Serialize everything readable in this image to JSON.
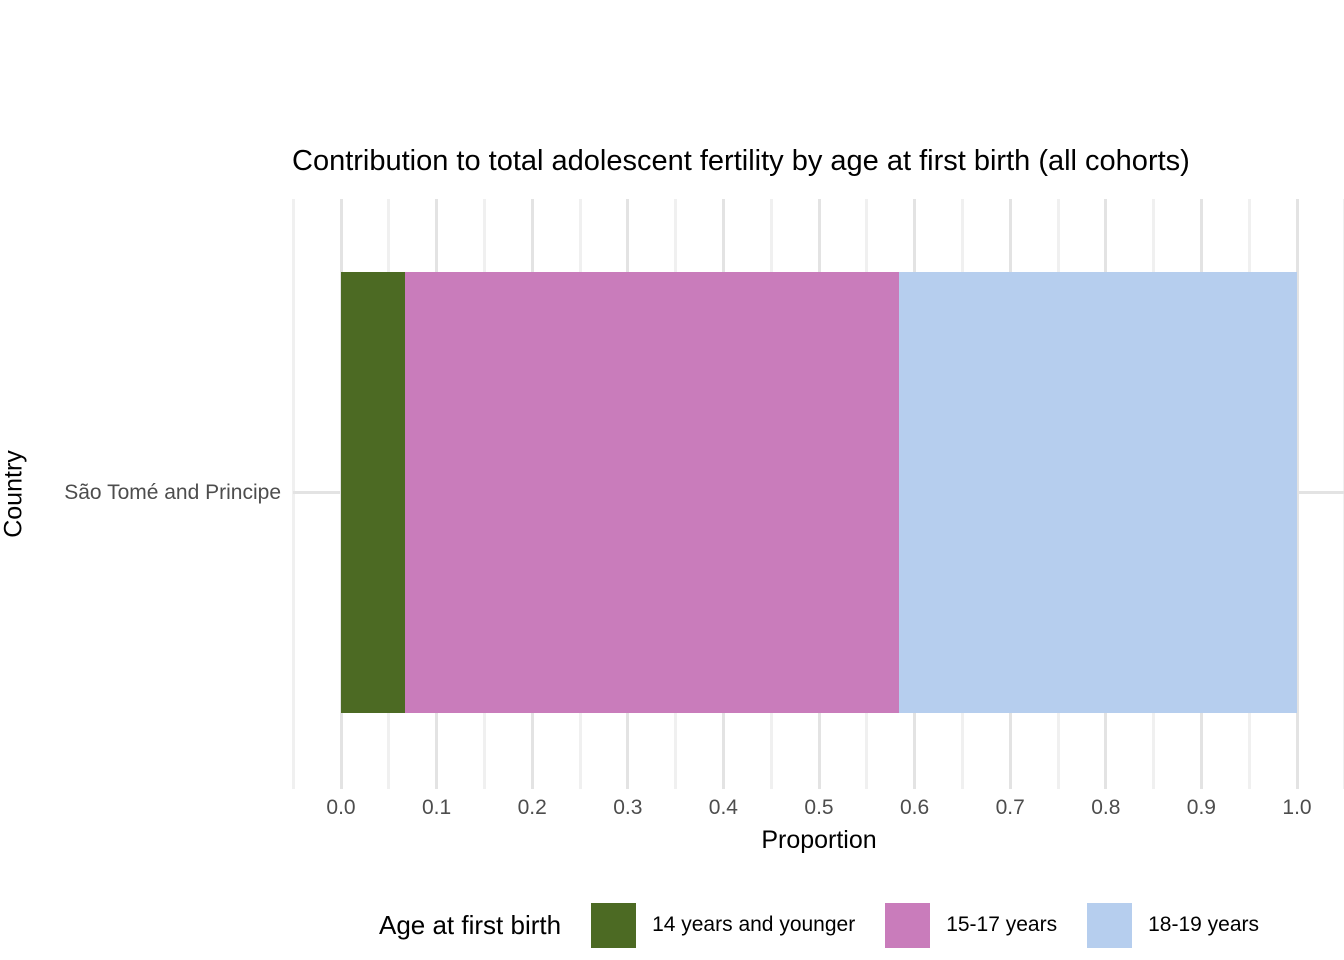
{
  "title": "Contribution to total adolescent fertility by age at first birth (all cohorts)",
  "chart_data": {
    "type": "bar",
    "orientation": "horizontal",
    "stacked": true,
    "title": "Contribution to total adolescent fertility by age at first birth (all cohorts)",
    "xlabel": "Proportion",
    "ylabel": "Country",
    "categories": [
      "São Tomé and Principe"
    ],
    "series": [
      {
        "name": "14 years and younger",
        "color": "#4C6A23",
        "values": [
          0.067
        ]
      },
      {
        "name": "15-17 years",
        "color": "#C97CBB",
        "values": [
          0.517
        ]
      },
      {
        "name": "18-19 years",
        "color": "#B6CEEE",
        "values": [
          0.416
        ]
      }
    ],
    "xlim": [
      0.0,
      1.0
    ],
    "x_major_ticks": [
      0.0,
      0.1,
      0.2,
      0.3,
      0.4,
      0.5,
      0.6,
      0.7,
      0.8,
      0.9,
      1.0
    ],
    "x_tick_labels": [
      "0.0",
      "0.1",
      "0.2",
      "0.3",
      "0.4",
      "0.5",
      "0.6",
      "0.7",
      "0.8",
      "0.9",
      "1.0"
    ],
    "x_minor_step": 0.05,
    "grid": "on",
    "legend_title": "Age at first birth",
    "legend_position": "bottom"
  },
  "colors": {
    "axis_text": "#4d4d4d",
    "grid_major": "#e3e3e3",
    "grid_minor": "#f0f0f0",
    "background": "#ffffff"
  }
}
